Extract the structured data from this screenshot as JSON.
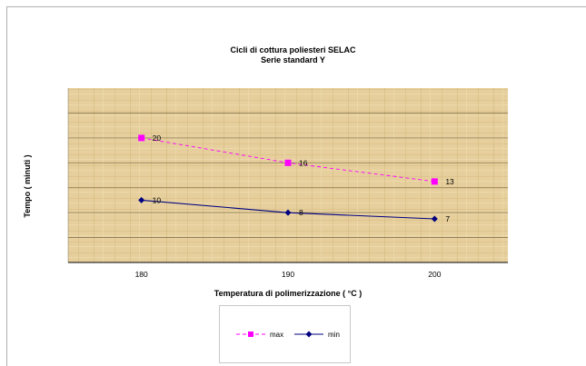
{
  "chart_data": {
    "type": "line",
    "title": [
      "Cicli di cottura poliesteri SELAC",
      "Serie standard Y"
    ],
    "xlabel": "Temperatura di polimerizzazione ( °C )",
    "ylabel": "Tempo ( minuti )",
    "categories": [
      "180",
      "190",
      "200"
    ],
    "ylim": [
      0,
      28
    ],
    "grid": true,
    "legend_position": "bottom",
    "series": [
      {
        "name": "max",
        "values": [
          20,
          16,
          13
        ],
        "color": "#ff00ff",
        "line_style": "dashed",
        "marker": "square"
      },
      {
        "name": "min",
        "values": [
          10,
          8,
          7
        ],
        "color": "#000080",
        "line_style": "solid",
        "marker": "diamond"
      }
    ]
  },
  "colors": {
    "plot_background": "#e6cf9c",
    "gridline": "#6b5a3a",
    "axis": "#000000"
  }
}
